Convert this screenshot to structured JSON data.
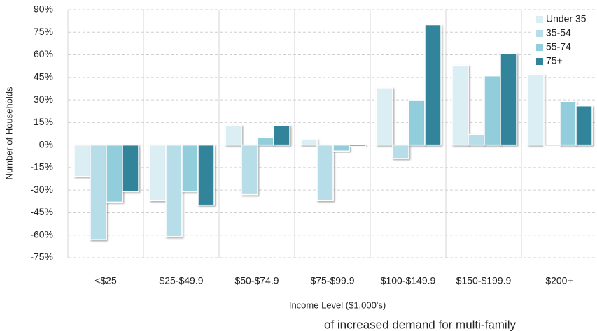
{
  "chart_data": {
    "type": "bar",
    "x_label": "Income Level ($1,000's)",
    "y_label": "Number of Households",
    "categories": [
      "<$25",
      "$25-$49.9",
      "$50-$74.9",
      "$75-$99.9",
      "$100-$149.9",
      "$150-$199.9",
      "$200+"
    ],
    "series": [
      {
        "name": "Under 35",
        "color": "#dbeef4",
        "values": [
          -21,
          -37,
          13,
          4,
          38,
          53,
          47
        ]
      },
      {
        "name": "35-54",
        "color": "#b7dde8",
        "values": [
          -63,
          -61,
          -33,
          -37,
          -9,
          7,
          -1
        ]
      },
      {
        "name": "55-74",
        "color": "#92cddc",
        "values": [
          -38,
          -31,
          5,
          -4,
          30,
          46,
          29
        ]
      },
      {
        "name": "75+",
        "color": "#31849b",
        "values": [
          -31,
          -40,
          13,
          -1,
          80,
          61,
          26
        ]
      }
    ],
    "ylim": [
      -75,
      90
    ],
    "yticks": [
      {
        "value": 90,
        "label": "90%"
      },
      {
        "value": 75,
        "label": "75%"
      },
      {
        "value": 60,
        "label": "60%"
      },
      {
        "value": 45,
        "label": "45%"
      },
      {
        "value": 30,
        "label": "30%"
      },
      {
        "value": 15,
        "label": "15%"
      },
      {
        "value": 0,
        "label": "0%"
      },
      {
        "value": -15,
        "label": "-15%"
      },
      {
        "value": -30,
        "label": "-30%"
      },
      {
        "value": -45,
        "label": "-45%"
      },
      {
        "value": -60,
        "label": "-60%"
      },
      {
        "value": -75,
        "label": "-75%"
      }
    ],
    "grid": true,
    "legend": "top-right",
    "annotations": [
      "of increased demand for multi-family"
    ]
  }
}
